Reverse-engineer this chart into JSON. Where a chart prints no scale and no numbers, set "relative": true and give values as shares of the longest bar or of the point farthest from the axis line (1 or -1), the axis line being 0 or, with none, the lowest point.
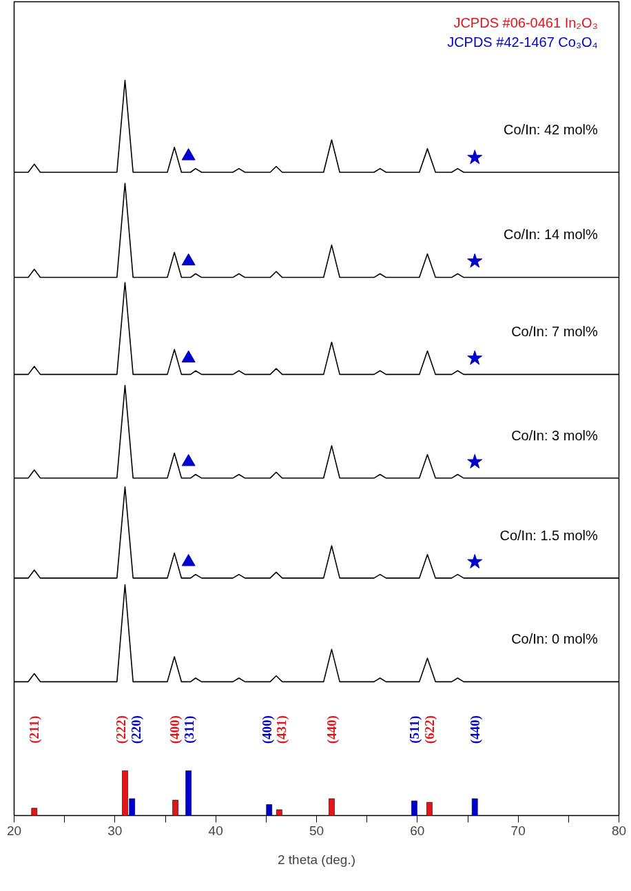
{
  "chart_data": {
    "type": "line",
    "relative": true,
    "xlabel": "2 theta (deg.)",
    "xlim": [
      20,
      80
    ],
    "xticks": [
      20,
      {
        "value": 25,
        "label": null
      },
      30,
      {
        "value": 35,
        "label": null
      },
      40,
      {
        "value": 45,
        "label": null
      },
      50,
      {
        "value": 55,
        "label": null
      },
      60,
      {
        "value": 65,
        "label": null
      },
      70,
      {
        "value": 75,
        "label": null
      },
      80
    ],
    "grid": false,
    "legend": "top right",
    "x": [
      20,
      21.4,
      22,
      22.6,
      30.2,
      31,
      31.8,
      35.2,
      35.9,
      36.6,
      37.5,
      38,
      38.6,
      41.7,
      42.3,
      42.9,
      45.4,
      46,
      46.6,
      50.7,
      51.5,
      52.3,
      55.7,
      56.3,
      56.9,
      60.2,
      61,
      61.8,
      63.4,
      64,
      64.6,
      80
    ],
    "series": [
      {
        "name": "Co/In: 42 mol%",
        "color": "#000000",
        "values": [
          0.875,
          0.875,
          0.886,
          0.875,
          0.875,
          1.0,
          0.875,
          0.875,
          0.909,
          0.875,
          0.875,
          0.88,
          0.875,
          0.875,
          0.88,
          0.875,
          0.875,
          0.883,
          0.875,
          0.875,
          0.919,
          0.875,
          0.875,
          0.88,
          0.875,
          0.875,
          0.907,
          0.875,
          0.875,
          0.88,
          0.875,
          0.875
        ]
      },
      {
        "name": "Co/In: 14 mol%",
        "color": "#000000",
        "values": [
          0.732,
          0.732,
          0.743,
          0.732,
          0.732,
          0.86,
          0.732,
          0.732,
          0.766,
          0.732,
          0.732,
          0.737,
          0.732,
          0.732,
          0.737,
          0.732,
          0.732,
          0.74,
          0.732,
          0.732,
          0.776,
          0.732,
          0.732,
          0.737,
          0.732,
          0.732,
          0.764,
          0.732,
          0.732,
          0.737,
          0.732,
          0.732
        ]
      },
      {
        "name": "Co/In: 7 mol%",
        "color": "#000000",
        "values": [
          0.6,
          0.6,
          0.611,
          0.6,
          0.6,
          0.725,
          0.6,
          0.6,
          0.634,
          0.6,
          0.6,
          0.605,
          0.6,
          0.6,
          0.605,
          0.6,
          0.6,
          0.608,
          0.6,
          0.6,
          0.644,
          0.6,
          0.6,
          0.605,
          0.6,
          0.6,
          0.632,
          0.6,
          0.6,
          0.605,
          0.6,
          0.6
        ]
      },
      {
        "name": "Co/In: 3 mol%",
        "color": "#000000",
        "values": [
          0.459,
          0.459,
          0.47,
          0.459,
          0.459,
          0.585,
          0.459,
          0.459,
          0.493,
          0.459,
          0.459,
          0.464,
          0.459,
          0.459,
          0.464,
          0.459,
          0.459,
          0.467,
          0.459,
          0.459,
          0.503,
          0.459,
          0.459,
          0.464,
          0.459,
          0.459,
          0.491,
          0.459,
          0.459,
          0.464,
          0.459,
          0.459
        ]
      },
      {
        "name": "Co/In: 1.5 mol%",
        "color": "#000000",
        "values": [
          0.323,
          0.323,
          0.334,
          0.323,
          0.323,
          0.447,
          0.323,
          0.323,
          0.357,
          0.323,
          0.323,
          0.328,
          0.323,
          0.323,
          0.328,
          0.323,
          0.323,
          0.331,
          0.323,
          0.323,
          0.367,
          0.323,
          0.323,
          0.328,
          0.323,
          0.323,
          0.355,
          0.323,
          0.323,
          0.328,
          0.323,
          0.323
        ]
      },
      {
        "name": "Co/In: 0 mol%",
        "color": "#000000",
        "values": [
          0.182,
          0.182,
          0.193,
          0.182,
          0.182,
          0.314,
          0.182,
          0.182,
          0.216,
          0.182,
          0.182,
          0.187,
          0.182,
          0.182,
          0.187,
          0.182,
          0.182,
          0.19,
          0.182,
          0.182,
          0.226,
          0.182,
          0.182,
          0.187,
          0.182,
          0.182,
          0.214,
          0.182,
          0.182,
          0.187,
          0.182,
          0.182
        ]
      },
      {
        "type": "scatter",
        "marker": "triangle",
        "color": "#0000cc",
        "x": [
          37.3,
          37.3,
          37.3,
          37.3,
          37.3
        ],
        "values": [
          0.897,
          0.754,
          0.622,
          0.481,
          0.345
        ]
      },
      {
        "type": "scatter",
        "marker": "star",
        "color": "#0000cc",
        "x": [
          65.7,
          65.7,
          65.7,
          65.7,
          65.7
        ],
        "values": [
          0.895,
          0.754,
          0.622,
          0.481,
          0.345
        ]
      },
      {
        "type": "bar",
        "name": "JCPDS #06-0461 In₂O₃",
        "color": "#e3151b",
        "x": [
          22,
          31,
          36,
          46.3,
          51.5,
          61.2
        ],
        "values": [
          0.01,
          0.061,
          0.021,
          0.008,
          0.023,
          0.018
        ]
      },
      {
        "type": "bar",
        "name": "JCPDS #42-1467 Co₃O₄",
        "color": "#0000cc",
        "x": [
          31.7,
          37.3,
          45.3,
          59.7,
          65.7
        ],
        "values": [
          0.023,
          0.061,
          0.015,
          0.02,
          0.023
        ]
      }
    ],
    "annotations": [
      "(211)",
      "(222)",
      "(220)",
      "(400)",
      "(311)",
      "(400)",
      "(431)",
      "(440)",
      "(511)",
      "(622)",
      "(440)"
    ]
  }
}
